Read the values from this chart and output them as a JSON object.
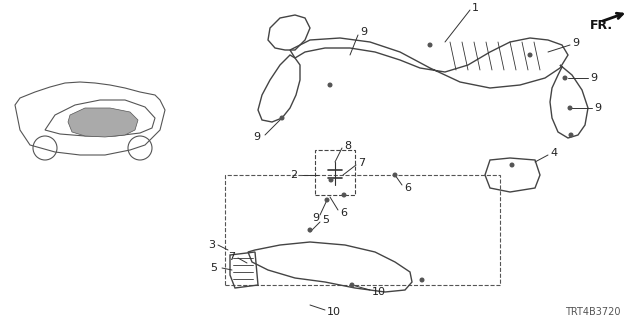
{
  "background_color": "#ffffff",
  "diagram_code": "TRT4B3720",
  "fr_label": "FR.",
  "text_color": "#222222",
  "line_color": "#333333",
  "font_size_labels": 8,
  "font_size_code": 7,
  "font_size_fr": 9
}
